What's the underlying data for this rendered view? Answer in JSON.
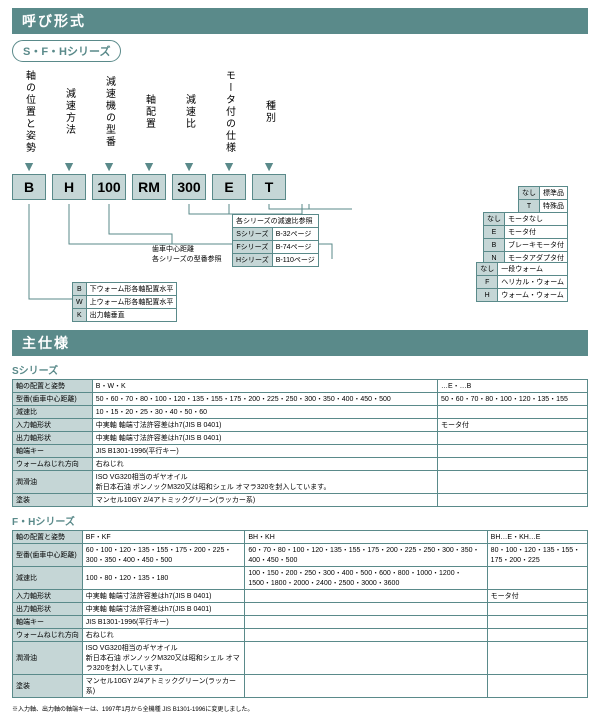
{
  "titles": {
    "t1": "呼び形式",
    "t2": "主仕様"
  },
  "oval1": "S・F・Hシリーズ",
  "columns": [
    {
      "label": "軸の位置と姿勢",
      "code": "B"
    },
    {
      "label": "減速方法",
      "code": "H"
    },
    {
      "label": "減速機の型番",
      "code": "100"
    },
    {
      "label": "軸配置",
      "code": "RM"
    },
    {
      "label": "減速比",
      "code": "300"
    },
    {
      "label": "モータ付の仕様",
      "code": "E"
    },
    {
      "label": "種別",
      "code": "T"
    }
  ],
  "legend_type": [
    {
      "k": "なし",
      "v": "標準品"
    },
    {
      "k": "T",
      "v": "特殊品"
    }
  ],
  "legend_motor": [
    {
      "k": "なし",
      "v": "モータなし"
    },
    {
      "k": "E",
      "v": "モータ付"
    },
    {
      "k": "B",
      "v": "ブレーキモータ付"
    },
    {
      "k": "N",
      "v": "モータアダプタ付"
    }
  ],
  "legend_ratio": [
    {
      "k": "",
      "v": "各シリーズの減速比参照"
    },
    {
      "k": "Sシリーズ",
      "v": "B-32ページ"
    },
    {
      "k": "Fシリーズ",
      "v": "B-74ページ"
    },
    {
      "k": "Hシリーズ",
      "v": "B-110ページ"
    }
  ],
  "legend_series": "歯車中心距離\n各シリーズの型番参照",
  "legend_method": [
    {
      "k": "なし",
      "v": "一段ウォーム"
    },
    {
      "k": "F",
      "v": "ヘリカル・ウォーム"
    },
    {
      "k": "H",
      "v": "ウォーム・ウォーム"
    }
  ],
  "legend_pos": [
    {
      "k": "B",
      "v": "下ウォーム形各軸配置水平"
    },
    {
      "k": "W",
      "v": "上ウォーム形各軸配置水平"
    },
    {
      "k": "K",
      "v": "出力軸垂直"
    }
  ],
  "s_label": "Sシリーズ",
  "s_rows": [
    {
      "h": "軸の配置と姿勢",
      "c1": "B・W・K",
      "c2": "…E・…B"
    },
    {
      "h": "型番(歯車中心距離)",
      "c1": "50・60・70・80・100・120・135・155・175・200・225・250・300・350・400・450・500",
      "c2": "50・60・70・80・100・120・135・155"
    },
    {
      "h": "減速比",
      "c1": "10・15・20・25・30・40・50・60",
      "c2": ""
    },
    {
      "h": "入力軸形状",
      "c1": "中実軸 軸端寸法許容差はh7(JIS B 0401)",
      "c2": "モータ付"
    },
    {
      "h": "出力軸形状",
      "c1": "中実軸 軸端寸法許容差はh7(JIS B 0401)",
      "c2": ""
    },
    {
      "h": "軸端キー",
      "c1": "JIS B1301-1996(平行キー)",
      "c2": ""
    },
    {
      "h": "ウォームねじれ方向",
      "c1": "右ねじれ",
      "c2": ""
    },
    {
      "h": "潤滑油",
      "c1": "ISO VG320相当のギヤオイル\n新日本石油 ボンノックM320又は昭和シェル オマラ320を封入しています。",
      "c2": ""
    },
    {
      "h": "塗装",
      "c1": "マンセル10GY 2/4アトミックグリーン(ラッカー系)",
      "c2": ""
    }
  ],
  "fh_label": "F・Hシリーズ",
  "fh_head": [
    "",
    "BF・KF",
    "BH・KH",
    "BH…E・KH…E"
  ],
  "fh_rows": [
    {
      "h": "軸の配置と姿勢",
      "cols": [
        "BF・KF",
        "BH・KH",
        "BH…E・KH…E"
      ]
    },
    {
      "h": "型番(歯車中心距離)",
      "cols": [
        "60・100・120・135・155・175・200・225・300・350・400・450・500",
        "60・70・80・100・120・135・155・175・200・225・250・300・350・400・450・500",
        "80・100・120・135・155・175・200・225"
      ]
    },
    {
      "h": "減速比",
      "cols": [
        "100・80・120・135・180",
        "100・150・200・250・300・400・500・600・800・1000・1200・1500・1800・2000・2400・2500・3000・3600",
        ""
      ]
    },
    {
      "h": "入力軸形状",
      "cols": [
        "中実軸 軸端寸法許容差はh7(JIS B 0401)",
        "",
        "モータ付"
      ]
    },
    {
      "h": "出力軸形状",
      "cols": [
        "中実軸 軸端寸法許容差はh7(JIS B 0401)",
        "",
        ""
      ]
    },
    {
      "h": "軸端キー",
      "cols": [
        "JIS B1301-1996(平行キー)",
        "",
        ""
      ]
    },
    {
      "h": "ウォームねじれ方向",
      "cols": [
        "右ねじれ",
        "",
        ""
      ]
    },
    {
      "h": "潤滑油",
      "cols": [
        "ISO VG320相当のギヤオイル\n新日本石油 ボンノックM320又は昭和シェル オマラ320を封入しています。",
        "",
        ""
      ]
    },
    {
      "h": "塗装",
      "cols": [
        "マンセル10GY 2/4アトミックグリーン(ラッカー系)",
        "",
        ""
      ]
    }
  ],
  "footnote": "※入力軸、出力軸の軸端キーは、1997年1月から全機種 JIS B1301-1996に変更しました。"
}
